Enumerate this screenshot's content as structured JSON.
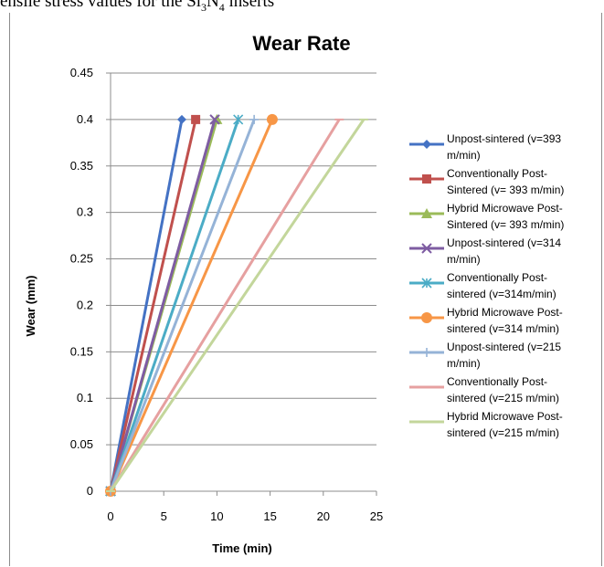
{
  "caption": "ensile stress values for the Si3N4 inserts",
  "chart_data": {
    "type": "line",
    "title": "Wear Rate",
    "xlabel": "Time (min)",
    "ylabel": "Wear (mm)",
    "xlim": [
      0,
      25
    ],
    "ylim": [
      0,
      0.45
    ],
    "xticks": [
      "0",
      "5",
      "10",
      "15",
      "20",
      "25"
    ],
    "yticks": [
      "0",
      "0.05",
      "0.1",
      "0.15",
      "0.2",
      "0.25",
      "0.3",
      "0.35",
      "0.4",
      "0.45"
    ],
    "grid": "horizontal",
    "legend_position": "right",
    "series": [
      {
        "name": "Unpost-sintered (v=393 m/min)",
        "color": "#4472c4",
        "marker": "diamond",
        "x": [
          0,
          6.7
        ],
        "y": [
          0,
          0.4
        ]
      },
      {
        "name": "Conventionally Post-Sintered (v= 393 m/min)",
        "color": "#c0504d",
        "marker": "square",
        "x": [
          0,
          8.0
        ],
        "y": [
          0,
          0.4
        ]
      },
      {
        "name": "Hybrid Microwave Post-Sintered (v= 393 m/min)",
        "color": "#9bbb59",
        "marker": "triangle",
        "x": [
          0,
          10.0
        ],
        "y": [
          0,
          0.4
        ]
      },
      {
        "name": "Unpost-sintered (v=314 m/min)",
        "color": "#7e5ca2",
        "marker": "x",
        "x": [
          0,
          9.8
        ],
        "y": [
          0,
          0.4
        ]
      },
      {
        "name": "Conventionally Post-sintered (v=314m/min)",
        "color": "#4bacc6",
        "marker": "star",
        "x": [
          0,
          12.0
        ],
        "y": [
          0,
          0.4
        ]
      },
      {
        "name": "Hybrid Microwave Post-sintered (v=314 m/min)",
        "color": "#f79646",
        "marker": "circle",
        "x": [
          0,
          15.2
        ],
        "y": [
          0,
          0.4
        ]
      },
      {
        "name": "Unpost-sintered (v=215 m/min)",
        "color": "#95b3d7",
        "marker": "plus",
        "x": [
          0,
          13.5
        ],
        "y": [
          0,
          0.4
        ]
      },
      {
        "name": "Conventionally Post-sintered (v=215 m/min)",
        "color": "#e6a0a0",
        "marker": "dash",
        "x": [
          0,
          21.5
        ],
        "y": [
          0,
          0.4
        ]
      },
      {
        "name": "Hybrid Microwave Post-sintered (v=215 m/min)",
        "color": "#c3d69b",
        "marker": "dash",
        "x": [
          0,
          23.8
        ],
        "y": [
          0,
          0.4
        ]
      }
    ],
    "legend_lines": [
      [
        "Unpost-sintered (v=393",
        "m/min)"
      ],
      [
        "Conventionally Post-",
        "Sintered (v= 393 m/min)"
      ],
      [
        "Hybrid Microwave Post-",
        "Sintered (v= 393 m/min)"
      ],
      [
        "Unpost-sintered (v=314",
        "m/min)"
      ],
      [
        "Conventionally Post-",
        "sintered (v=314m/min)"
      ],
      [
        "Hybrid Microwave Post-",
        "sintered (v=314 m/min)"
      ],
      [
        "Unpost-sintered (v=215",
        "m/min)"
      ],
      [
        "Conventionally Post-",
        "sintered (v=215 m/min)"
      ],
      [
        "Hybrid Microwave Post-",
        "sintered (v=215 m/min)"
      ]
    ]
  }
}
